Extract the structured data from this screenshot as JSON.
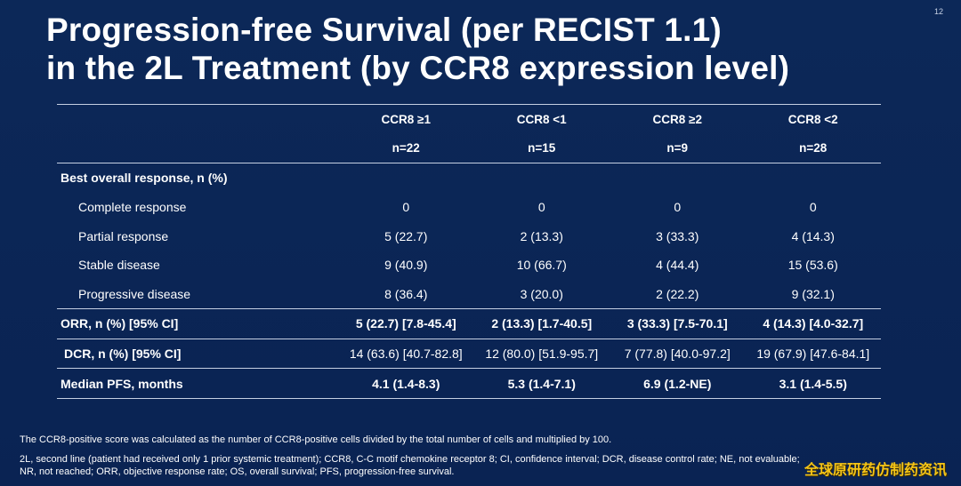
{
  "slide": {
    "page_number": "12",
    "title_line1": "Progression-free Survival (per RECIST 1.1)",
    "title_line2": "in the 2L Treatment (by CCR8 expression level)"
  },
  "table": {
    "columns": [
      {
        "group": "CCR8 ≥1",
        "n": "n=22"
      },
      {
        "group": "CCR8 <1",
        "n": "n=15"
      },
      {
        "group": "CCR8 ≥2",
        "n": "n=9"
      },
      {
        "group": "CCR8 <2",
        "n": "n=28"
      }
    ],
    "section_header": "Best overall response, n (%)",
    "rows": [
      {
        "label": "Complete response",
        "values": [
          "0",
          "0",
          "0",
          "0"
        ]
      },
      {
        "label": "Partial response",
        "values": [
          "5 (22.7)",
          "2 (13.3)",
          "3 (33.3)",
          "4 (14.3)"
        ]
      },
      {
        "label": "Stable disease",
        "values": [
          "9 (40.9)",
          "10 (66.7)",
          "4 (44.4)",
          "15 (53.6)"
        ]
      },
      {
        "label": "Progressive disease",
        "values": [
          "8 (36.4)",
          "3 (20.0)",
          "2 (22.2)",
          "9 (32.1)"
        ]
      }
    ],
    "orr": {
      "label": "ORR, n (%) [95% CI]",
      "values": [
        "5 (22.7) [7.8-45.4]",
        "2 (13.3) [1.7-40.5]",
        "3 (33.3) [7.5-70.1]",
        "4 (14.3) [4.0-32.7]"
      ]
    },
    "dcr": {
      "label": "DCR, n (%) [95% CI]",
      "values": [
        "14 (63.6) [40.7-82.8]",
        "12 (80.0) [51.9-95.7]",
        "7 (77.8) [40.0-97.2]",
        "19 (67.9) [47.6-84.1]"
      ]
    },
    "pfs": {
      "label": "Median PFS, months",
      "values": [
        "4.1 (1.4-8.3)",
        "5.3 (1.4-7.1)",
        "6.9 (1.2-NE)",
        "3.1 (1.4-5.5)"
      ]
    }
  },
  "footnotes": {
    "note1": "The CCR8-positive score was calculated as the number of CCR8-positive cells divided by the total number of cells and multiplied by 100.",
    "note2_line1": "2L, second line (patient had received only 1 prior systemic treatment); CCR8, C-C motif chemokine receptor 8; CI, confidence interval; DCR, disease control rate; NE, not evaluable;",
    "note2_line2": "NR, not reached; ORR, objective response rate; OS, overall survival; PFS, progression-free survival."
  },
  "watermark": "全球原研药仿制药资讯",
  "colors": {
    "background": "#0b2556",
    "text": "#ffffff",
    "rule": "#c5cfe2",
    "watermark": "#f5c518"
  }
}
